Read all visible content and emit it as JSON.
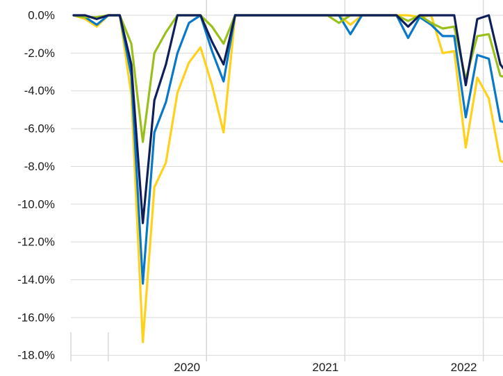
{
  "chart_data": {
    "type": "line",
    "x": [
      "2019-01",
      "2019-02",
      "2019-03",
      "2019-04",
      "2019-05",
      "2019-06",
      "2019-07",
      "2019-08",
      "2019-09",
      "2019-10",
      "2019-11",
      "2019-12",
      "2020-01",
      "2020-02",
      "2020-03",
      "2020-04",
      "2020-05",
      "2020-06",
      "2020-07",
      "2020-08",
      "2020-09",
      "2020-10",
      "2020-11",
      "2020-12",
      "2021-01",
      "2021-02",
      "2021-03",
      "2021-04",
      "2021-05",
      "2021-06",
      "2021-07",
      "2021-08",
      "2021-09",
      "2021-10",
      "2021-11",
      "2021-12",
      "2022-01",
      "2022-02",
      "2022-03",
      "2022-04"
    ],
    "x_tick_labels": [
      {
        "label": "2020",
        "x": "2020-01"
      },
      {
        "label": "2021",
        "x": "2021-01"
      },
      {
        "label": "2022",
        "x": "2022-01"
      }
    ],
    "x_minor_ticks": [
      "2019-01",
      "2019-04"
    ],
    "y_ticks": [
      0,
      -2,
      -4,
      -6,
      -8,
      -10,
      -12,
      -14,
      -16,
      -18
    ],
    "y_tick_format": "percent_1dp",
    "ylim": [
      -18.3,
      0.4
    ],
    "grid": "horizontal+year",
    "legend": "none",
    "title": "",
    "xlabel": "",
    "ylabel": "",
    "series": [
      {
        "color": "#ffd11a",
        "values": [
          0,
          -0.2,
          -0.6,
          0,
          0,
          -4.2,
          -17.3,
          -9.1,
          -7.8,
          -4.1,
          -2.5,
          -1.7,
          -3.7,
          -6.2,
          0,
          0,
          0,
          0,
          0,
          0,
          0,
          0,
          0,
          0,
          -0.5,
          0,
          0,
          0,
          0,
          0,
          -0.1,
          0,
          -2.0,
          -1.9,
          -7.0,
          -3.3,
          -4.4,
          -7.7,
          -8.0,
          -8.0
        ]
      },
      {
        "color": "#0a78c8",
        "values": [
          0,
          -0.1,
          -0.5,
          0,
          0,
          -3.2,
          -14.2,
          -6.2,
          -4.6,
          -2.0,
          -0.4,
          0,
          -1.9,
          -3.5,
          0,
          0,
          0,
          0,
          0,
          0,
          0,
          0,
          0,
          0,
          -1.0,
          0,
          0,
          0,
          0,
          -1.2,
          -0.1,
          -0.5,
          -1.1,
          -1.1,
          -5.4,
          -2.1,
          -2.3,
          -5.6,
          -5.8,
          -5.8
        ]
      },
      {
        "color": "#99c01a",
        "values": [
          0,
          -0.1,
          -0.1,
          0,
          0,
          -1.5,
          -6.7,
          -2.0,
          -0.9,
          0,
          0,
          0,
          -0.6,
          -1.5,
          0,
          0,
          0,
          0,
          0,
          0,
          0,
          0,
          0,
          -0.4,
          0,
          0,
          0,
          0,
          0,
          -0.3,
          0,
          -0.4,
          -0.7,
          -0.6,
          -3.4,
          -1.1,
          -1.0,
          -3.2,
          -3.4,
          -3.4
        ]
      },
      {
        "color": "#0f1f5a",
        "values": [
          0,
          0,
          -0.2,
          0,
          0,
          -2.6,
          -11.0,
          -4.5,
          -2.6,
          0,
          0,
          0,
          -1.4,
          -2.6,
          0,
          0,
          0,
          0,
          0,
          0,
          0,
          0,
          0,
          0,
          0,
          0,
          0,
          0,
          0,
          -0.6,
          0,
          0,
          0,
          0,
          -3.7,
          -0.2,
          0,
          -2.6,
          -3.4,
          -3.4
        ]
      }
    ]
  }
}
